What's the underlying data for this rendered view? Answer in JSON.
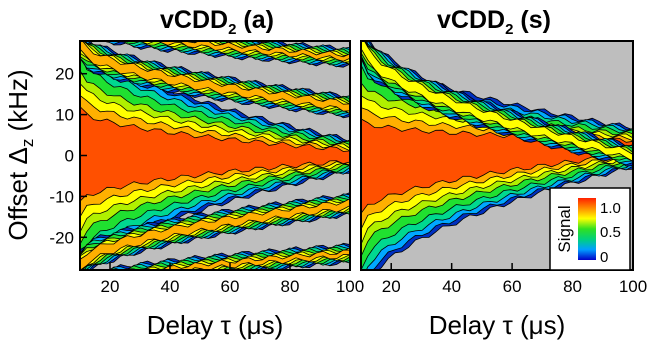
{
  "chart_data": [
    {
      "type": "heatmap",
      "id": "a",
      "title_main": "vCDD",
      "title_sub": "2",
      "title_tail": " (a)",
      "xlabel": "Delay τ (μs)",
      "ylabel_main": "Offset Δ",
      "ylabel_sub": "z",
      "ylabel_tail": " (kHz)",
      "xlim": [
        10,
        100
      ],
      "ylim": [
        -28,
        28
      ],
      "xticks": [
        20,
        40,
        60,
        80,
        100
      ],
      "yticks": [
        20,
        10,
        0,
        -10,
        -20
      ],
      "bands": [
        {
          "center": [
            0,
            0
          ],
          "width": [
            34,
            4
          ],
          "peak": 1.0
        },
        {
          "center": [
            27,
            12
          ],
          "width": [
            4,
            2.5
          ],
          "peak": 0.85
        },
        {
          "center": [
            33,
            24
          ],
          "width": [
            3,
            2.2
          ],
          "peak": 0.75
        },
        {
          "center": [
            -27,
            -12
          ],
          "width": [
            4,
            2.5
          ],
          "peak": 0.85
        },
        {
          "center": [
            -33,
            -24
          ],
          "width": [
            3,
            2.2
          ],
          "peak": 0.75
        }
      ]
    },
    {
      "type": "heatmap",
      "id": "s",
      "title_main": "vCDD",
      "title_sub": "2",
      "title_tail": " (s)",
      "xlabel": "Delay τ (μs)",
      "xlim": [
        10,
        100
      ],
      "ylim": [
        -28,
        28
      ],
      "xticks": [
        20,
        40,
        60,
        80,
        100
      ],
      "yticks": [],
      "bands": [
        {
          "center": [
            -3,
            2
          ],
          "width": [
            34,
            5
          ],
          "peak": 1.0
        },
        {
          "center": [
            28,
            0
          ],
          "width": [
            5,
            2.5
          ],
          "peak": 0.7
        }
      ]
    }
  ],
  "colorbar": {
    "title": "Signal",
    "labels": [
      "1.0",
      "0.5",
      "0"
    ],
    "range": [
      0,
      1.0
    ],
    "colors": [
      "#0000c8",
      "#00a0ff",
      "#00d080",
      "#30e020",
      "#ffff00",
      "#ff9000",
      "#ff2000"
    ]
  },
  "background_color": "#bebebe"
}
